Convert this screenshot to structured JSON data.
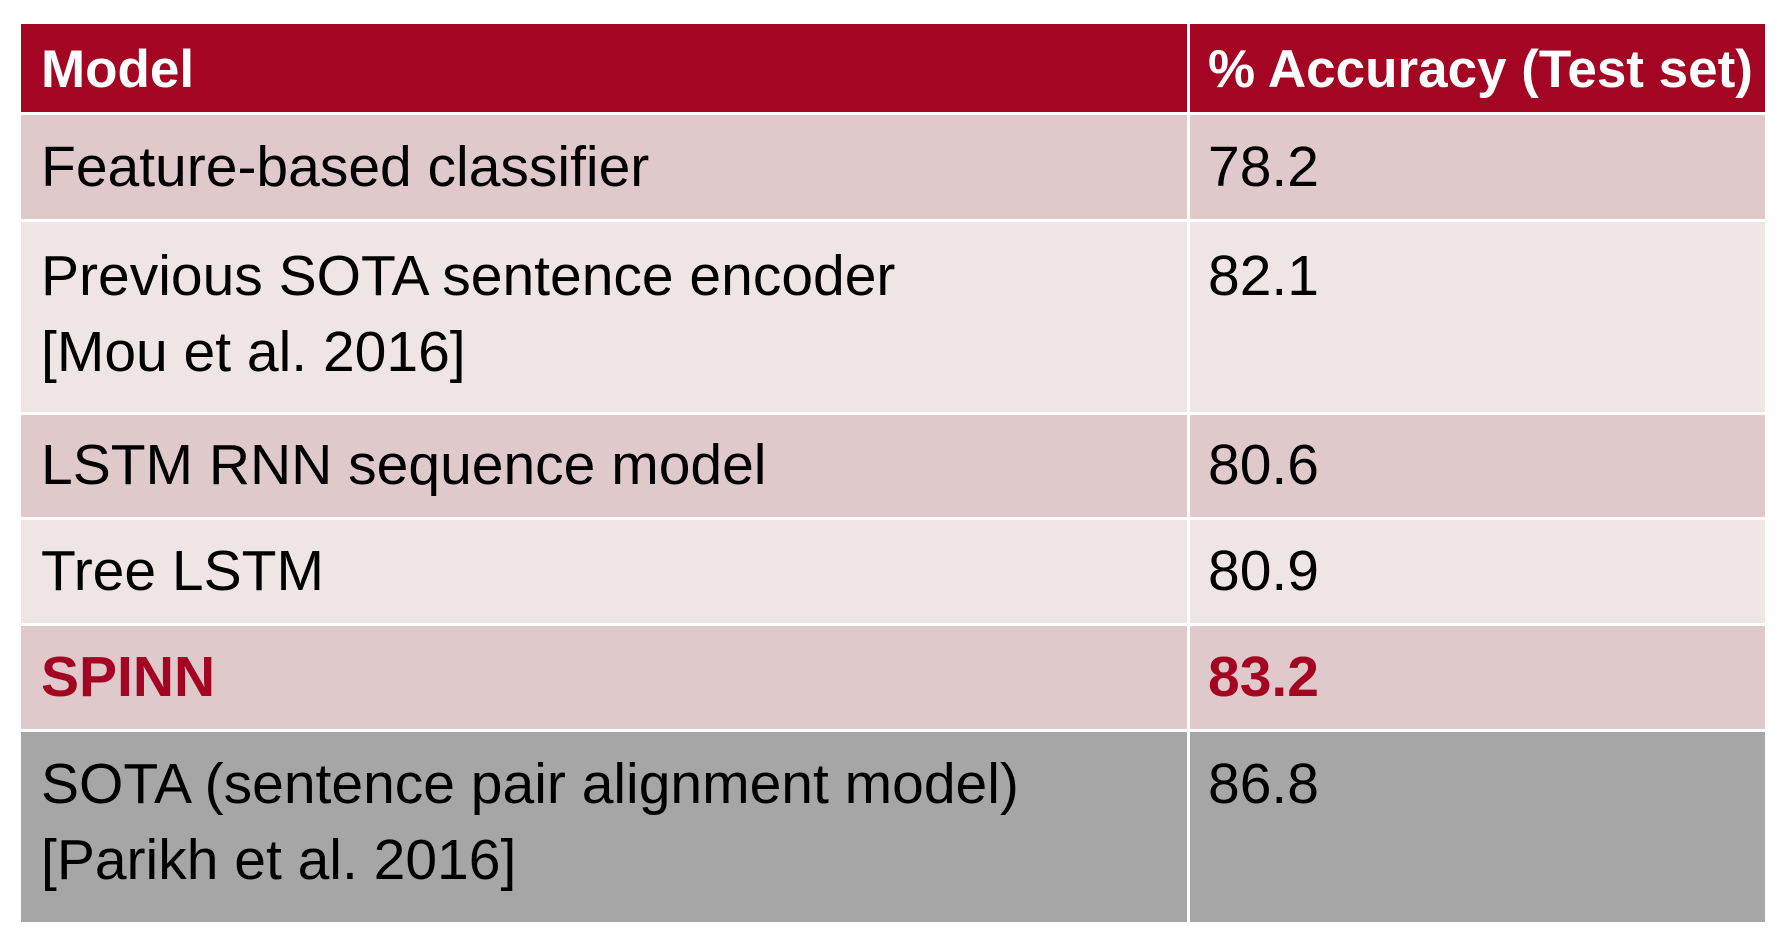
{
  "table": {
    "headers": {
      "model": "Model",
      "accuracy": "% Accuracy (Test set)"
    },
    "rows": [
      {
        "model_line1": "Feature-based classifier",
        "model_line2": "",
        "accuracy": "78.2"
      },
      {
        "model_line1": "Previous SOTA sentence encoder",
        "model_line2": "[Mou et al. 2016]",
        "accuracy": "82.1"
      },
      {
        "model_line1": "LSTM RNN sequence model",
        "model_line2": "",
        "accuracy": "80.6"
      },
      {
        "model_line1": "Tree LSTM",
        "model_line2": "",
        "accuracy": "80.9"
      },
      {
        "model_line1": "SPINN",
        "model_line2": "",
        "accuracy": "83.2"
      },
      {
        "model_line1": "SOTA (sentence pair alignment model)",
        "model_line2": "[Parikh et al. 2016]",
        "accuracy": "86.8"
      }
    ],
    "colors": {
      "header_bg": "#a30523",
      "row_dark": "#e0c9cb",
      "row_light": "#f0e5e5",
      "row_gray": "#a6a6a6",
      "highlight_text": "#a30523"
    }
  }
}
